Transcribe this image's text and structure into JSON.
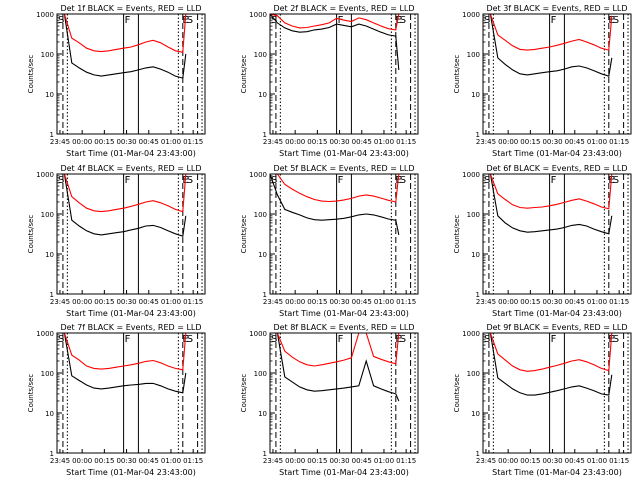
{
  "figure": {
    "time_ticks": [
      "23:45",
      "00:00",
      "00:15",
      "00:30",
      "00:45",
      "01:00",
      "01:15"
    ],
    "y_ticks": [
      "1",
      "10",
      "100",
      "1000"
    ],
    "colors": {
      "events": "#000000",
      "lld": "#ff0000",
      "axes": "#000000",
      "background": "#ffffff"
    }
  },
  "chart_data": [
    {
      "type": "line",
      "title": "Det 1f BLACK = Events, RED = LLD",
      "xlabel": "Start Time (01-Mar-04 23:43:00)",
      "ylabel": "Counts/sec",
      "yscale": "log",
      "ylim": [
        1,
        1000
      ],
      "xlim": [
        "23:43",
        "01:23"
      ],
      "x": [
        "23:43",
        "23:48",
        "23:53",
        "23:58",
        "00:03",
        "00:08",
        "00:13",
        "00:18",
        "00:23",
        "00:28",
        "00:33",
        "00:38",
        "00:43",
        "00:48",
        "00:53",
        "00:58",
        "01:03",
        "01:08",
        "01:10"
      ],
      "series": [
        {
          "name": "Events",
          "color": "#000000",
          "values": [
            1000,
            1000,
            60,
            45,
            35,
            30,
            28,
            30,
            32,
            34,
            36,
            40,
            45,
            48,
            42,
            35,
            28,
            25,
            100
          ]
        },
        {
          "name": "LLD",
          "color": "#ff0000",
          "values": [
            1000,
            1000,
            250,
            190,
            140,
            120,
            115,
            120,
            130,
            140,
            150,
            170,
            200,
            220,
            190,
            150,
            120,
            110,
            1000
          ]
        }
      ],
      "markers": [
        {
          "label": "S",
          "time": "23:43"
        },
        {
          "label": "F",
          "time": "00:28"
        },
        {
          "label": "E",
          "time": "01:07"
        },
        {
          "label": "S",
          "time": "01:10"
        }
      ]
    },
    {
      "type": "line",
      "title": "Det 2f BLACK = Events, RED = LLD",
      "xlabel": "Start Time (01-Mar-04 23:43:00)",
      "ylabel": "Counts/sec",
      "yscale": "log",
      "ylim": [
        1,
        1000
      ],
      "xlim": [
        "23:43",
        "01:23"
      ],
      "x": [
        "23:43",
        "23:48",
        "23:53",
        "23:58",
        "00:03",
        "00:08",
        "00:13",
        "00:18",
        "00:23",
        "00:28",
        "00:33",
        "00:38",
        "00:43",
        "00:48",
        "00:53",
        "00:58",
        "01:03",
        "01:08",
        "01:10"
      ],
      "series": [
        {
          "name": "Events",
          "color": "#000000",
          "values": [
            1000,
            600,
            450,
            380,
            350,
            360,
            400,
            420,
            460,
            560,
            520,
            480,
            560,
            500,
            420,
            350,
            300,
            280,
            40
          ]
        },
        {
          "name": "LLD",
          "color": "#ff0000",
          "values": [
            1000,
            900,
            600,
            500,
            450,
            460,
            500,
            540,
            600,
            780,
            700,
            650,
            800,
            720,
            600,
            500,
            430,
            400,
            1000
          ]
        }
      ],
      "markers": [
        {
          "label": "S",
          "time": "23:43"
        },
        {
          "label": "F",
          "time": "00:28"
        },
        {
          "label": "E",
          "time": "01:07"
        },
        {
          "label": "S",
          "time": "01:10"
        }
      ]
    },
    {
      "type": "line",
      "title": "Det 3f BLACK = Events, RED = LLD",
      "xlabel": "Start Time (01-Mar-04 23:43:00)",
      "ylabel": "Counts/sec",
      "yscale": "log",
      "ylim": [
        1,
        1000
      ],
      "xlim": [
        "23:43",
        "01:23"
      ],
      "x": [
        "23:43",
        "23:48",
        "23:53",
        "23:58",
        "00:03",
        "00:08",
        "00:13",
        "00:18",
        "00:23",
        "00:28",
        "00:33",
        "00:38",
        "00:43",
        "00:48",
        "00:53",
        "00:58",
        "01:03",
        "01:08",
        "01:10"
      ],
      "series": [
        {
          "name": "Events",
          "color": "#000000",
          "values": [
            1000,
            1000,
            80,
            55,
            40,
            32,
            30,
            32,
            34,
            36,
            38,
            42,
            48,
            50,
            45,
            38,
            32,
            28,
            80
          ]
        },
        {
          "name": "LLD",
          "color": "#ff0000",
          "values": [
            1000,
            1000,
            300,
            220,
            160,
            130,
            125,
            130,
            140,
            150,
            165,
            185,
            210,
            230,
            200,
            170,
            140,
            125,
            900
          ]
        }
      ],
      "markers": [
        {
          "label": "S",
          "time": "23:43"
        },
        {
          "label": "F",
          "time": "00:28"
        },
        {
          "label": "E",
          "time": "01:07"
        },
        {
          "label": "S",
          "time": "01:10"
        }
      ]
    },
    {
      "type": "line",
      "title": "Det 4f BLACK = Events, RED = LLD",
      "xlabel": "Start Time (01-Mar-04 23:43:00)",
      "ylabel": "Counts/sec",
      "yscale": "log",
      "ylim": [
        1,
        1000
      ],
      "xlim": [
        "23:43",
        "01:23"
      ],
      "x": [
        "23:43",
        "23:48",
        "23:53",
        "23:58",
        "00:03",
        "00:08",
        "00:13",
        "00:18",
        "00:23",
        "00:28",
        "00:33",
        "00:38",
        "00:43",
        "00:48",
        "00:53",
        "00:58",
        "01:03",
        "01:08",
        "01:10"
      ],
      "series": [
        {
          "name": "Events",
          "color": "#000000",
          "values": [
            1000,
            1000,
            70,
            50,
            38,
            32,
            30,
            32,
            34,
            36,
            40,
            44,
            50,
            52,
            46,
            38,
            32,
            28,
            90
          ]
        },
        {
          "name": "LLD",
          "color": "#ff0000",
          "values": [
            1000,
            1000,
            270,
            190,
            140,
            120,
            115,
            120,
            130,
            140,
            155,
            175,
            200,
            215,
            190,
            160,
            130,
            115,
            1000
          ]
        }
      ],
      "markers": [
        {
          "label": "S",
          "time": "23:43"
        },
        {
          "label": "F",
          "time": "00:28"
        },
        {
          "label": "E",
          "time": "01:07"
        },
        {
          "label": "S",
          "time": "01:10"
        }
      ]
    },
    {
      "type": "line",
      "title": "Det 5f BLACK = Events, RED = LLD",
      "xlabel": "Start Time (01-Mar-04 23:43:00)",
      "ylabel": "Counts/sec",
      "yscale": "log",
      "ylim": [
        1,
        1000
      ],
      "xlim": [
        "23:43",
        "01:23"
      ],
      "x": [
        "23:43",
        "23:48",
        "23:53",
        "23:58",
        "00:03",
        "00:08",
        "00:13",
        "00:18",
        "00:23",
        "00:28",
        "00:33",
        "00:38",
        "00:43",
        "00:48",
        "00:53",
        "00:58",
        "01:03",
        "01:08",
        "01:10"
      ],
      "series": [
        {
          "name": "Events",
          "color": "#000000",
          "values": [
            1000,
            300,
            130,
            110,
            95,
            80,
            72,
            70,
            72,
            74,
            78,
            85,
            95,
            100,
            95,
            85,
            75,
            70,
            30
          ]
        },
        {
          "name": "LLD",
          "color": "#ff0000",
          "values": [
            1000,
            1000,
            550,
            420,
            330,
            270,
            230,
            210,
            205,
            210,
            225,
            245,
            280,
            300,
            280,
            250,
            220,
            200,
            1000
          ]
        }
      ],
      "markers": [
        {
          "label": "S",
          "time": "23:43"
        },
        {
          "label": "F",
          "time": "00:28"
        },
        {
          "label": "E",
          "time": "01:07"
        },
        {
          "label": "S",
          "time": "01:10"
        }
      ]
    },
    {
      "type": "line",
      "title": "Det 6f BLACK = Events, RED = LLD",
      "xlabel": "Start Time (01-Mar-04 23:43:00)",
      "ylabel": "Counts/sec",
      "yscale": "log",
      "ylim": [
        1,
        1000
      ],
      "xlim": [
        "23:43",
        "01:23"
      ],
      "x": [
        "23:43",
        "23:48",
        "23:53",
        "23:58",
        "00:03",
        "00:08",
        "00:13",
        "00:18",
        "00:23",
        "00:28",
        "00:33",
        "00:38",
        "00:43",
        "00:48",
        "00:53",
        "00:58",
        "01:03",
        "01:08",
        "01:10"
      ],
      "series": [
        {
          "name": "Events",
          "color": "#000000",
          "values": [
            1000,
            1000,
            90,
            60,
            45,
            38,
            35,
            36,
            38,
            40,
            42,
            46,
            52,
            55,
            50,
            42,
            36,
            32,
            90
          ]
        },
        {
          "name": "LLD",
          "color": "#ff0000",
          "values": [
            1000,
            1000,
            320,
            230,
            170,
            145,
            140,
            145,
            150,
            160,
            175,
            195,
            220,
            240,
            210,
            180,
            150,
            135,
            1000
          ]
        }
      ],
      "markers": [
        {
          "label": "S",
          "time": "23:43"
        },
        {
          "label": "F",
          "time": "00:28"
        },
        {
          "label": "E",
          "time": "01:07"
        },
        {
          "label": "S",
          "time": "01:10"
        }
      ]
    },
    {
      "type": "line",
      "title": "Det 7f BLACK = Events, RED = LLD",
      "xlabel": "Start Time (01-Mar-04 23:43:00)",
      "ylabel": "Counts/sec",
      "yscale": "log",
      "ylim": [
        1,
        1000
      ],
      "xlim": [
        "23:43",
        "01:23"
      ],
      "x": [
        "23:43",
        "23:48",
        "23:53",
        "23:58",
        "00:03",
        "00:08",
        "00:13",
        "00:18",
        "00:23",
        "00:28",
        "00:33",
        "00:38",
        "00:43",
        "00:48",
        "00:53",
        "00:58",
        "01:03",
        "01:08",
        "01:10"
      ],
      "series": [
        {
          "name": "Events",
          "color": "#000000",
          "values": [
            1000,
            1000,
            85,
            65,
            50,
            42,
            40,
            42,
            45,
            48,
            50,
            52,
            55,
            55,
            48,
            40,
            35,
            32,
            100
          ]
        },
        {
          "name": "LLD",
          "color": "#ff0000",
          "values": [
            1000,
            1000,
            280,
            210,
            150,
            130,
            125,
            130,
            140,
            150,
            160,
            175,
            195,
            205,
            180,
            150,
            130,
            120,
            1000
          ]
        }
      ],
      "markers": [
        {
          "label": "S",
          "time": "23:43"
        },
        {
          "label": "F",
          "time": "00:28"
        },
        {
          "label": "E",
          "time": "01:07"
        },
        {
          "label": "S",
          "time": "01:10"
        }
      ]
    },
    {
      "type": "line",
      "title": "Det 8f BLACK = Events, RED = LLD",
      "xlabel": "Start Time (01-Mar-04 23:43:00)",
      "ylabel": "Counts/sec",
      "yscale": "log",
      "ylim": [
        1,
        1000
      ],
      "xlim": [
        "23:43",
        "01:23"
      ],
      "x": [
        "23:43",
        "23:48",
        "23:53",
        "23:58",
        "00:03",
        "00:08",
        "00:13",
        "00:18",
        "00:23",
        "00:28",
        "00:33",
        "00:38",
        "00:43",
        "00:48",
        "00:53",
        "00:58",
        "01:03",
        "01:08",
        "01:10"
      ],
      "series": [
        {
          "name": "Events",
          "color": "#000000",
          "values": [
            1000,
            1000,
            80,
            60,
            45,
            38,
            35,
            36,
            38,
            40,
            42,
            45,
            48,
            200,
            48,
            40,
            34,
            30,
            20
          ]
        },
        {
          "name": "LLD",
          "color": "#ff0000",
          "values": [
            1000,
            1000,
            350,
            250,
            190,
            160,
            150,
            160,
            175,
            190,
            210,
            240,
            1000,
            1000,
            260,
            220,
            190,
            170,
            1000
          ]
        }
      ],
      "markers": [
        {
          "label": "S",
          "time": "23:43"
        },
        {
          "label": "F",
          "time": "00:28"
        },
        {
          "label": "E",
          "time": "01:07"
        },
        {
          "label": "S",
          "time": "01:10"
        }
      ]
    },
    {
      "type": "line",
      "title": "Det 9f BLACK = Events, RED = LLD",
      "xlabel": "Start Time (01-Mar-04 23:43:00)",
      "ylabel": "Counts/sec",
      "yscale": "log",
      "ylim": [
        1,
        1000
      ],
      "xlim": [
        "23:43",
        "01:23"
      ],
      "x": [
        "23:43",
        "23:48",
        "23:53",
        "23:58",
        "00:03",
        "00:08",
        "00:13",
        "00:18",
        "00:23",
        "00:28",
        "00:33",
        "00:38",
        "00:43",
        "00:48",
        "00:53",
        "00:58",
        "01:03",
        "01:08",
        "01:10"
      ],
      "series": [
        {
          "name": "Events",
          "color": "#000000",
          "values": [
            1000,
            1000,
            75,
            55,
            40,
            32,
            28,
            28,
            30,
            33,
            36,
            40,
            45,
            48,
            42,
            36,
            30,
            28,
            90
          ]
        },
        {
          "name": "LLD",
          "color": "#ff0000",
          "values": [
            1000,
            1000,
            300,
            210,
            150,
            120,
            110,
            115,
            125,
            140,
            155,
            175,
            200,
            215,
            190,
            160,
            130,
            115,
            1000
          ]
        }
      ],
      "markers": [
        {
          "label": "S",
          "time": "23:43"
        },
        {
          "label": "F",
          "time": "00:28"
        },
        {
          "label": "E",
          "time": "01:07"
        },
        {
          "label": "S",
          "time": "01:10"
        }
      ]
    }
  ]
}
